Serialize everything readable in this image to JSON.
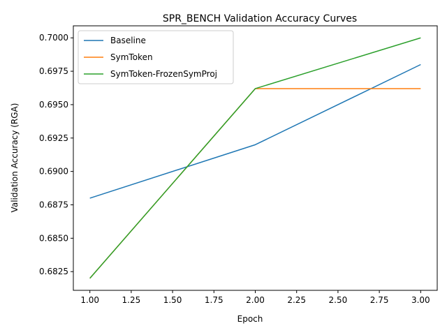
{
  "chart_data": {
    "type": "line",
    "title": "SPR_BENCH Validation Accuracy Curves",
    "xlabel": "Epoch",
    "ylabel": "Validation Accuracy (RGA)",
    "xlim": [
      0.9,
      3.1
    ],
    "ylim": [
      0.6811,
      0.7009
    ],
    "xticks": [
      1.0,
      1.25,
      1.5,
      1.75,
      2.0,
      2.25,
      2.5,
      2.75,
      3.0
    ],
    "xtick_labels": [
      "1.00",
      "1.25",
      "1.50",
      "1.75",
      "2.00",
      "2.25",
      "2.50",
      "2.75",
      "3.00"
    ],
    "yticks": [
      0.6825,
      0.685,
      0.6875,
      0.69,
      0.6925,
      0.695,
      0.6975,
      0.7
    ],
    "ytick_labels": [
      "0.6825",
      "0.6850",
      "0.6875",
      "0.6900",
      "0.6925",
      "0.6950",
      "0.6975",
      "0.7000"
    ],
    "grid": false,
    "legend_position": "top-left",
    "series": [
      {
        "name": "Baseline",
        "color": "#1f77b4",
        "x": [
          1,
          2,
          3
        ],
        "y": [
          0.688,
          0.692,
          0.698
        ]
      },
      {
        "name": "SymToken",
        "color": "#ff7f0e",
        "x": [
          1,
          2,
          3
        ],
        "y": [
          0.682,
          0.6962,
          0.6962
        ]
      },
      {
        "name": "SymToken-FrozenSymProj",
        "color": "#2ca02c",
        "x": [
          1,
          2,
          3
        ],
        "y": [
          0.682,
          0.6962,
          0.7
        ]
      }
    ]
  }
}
